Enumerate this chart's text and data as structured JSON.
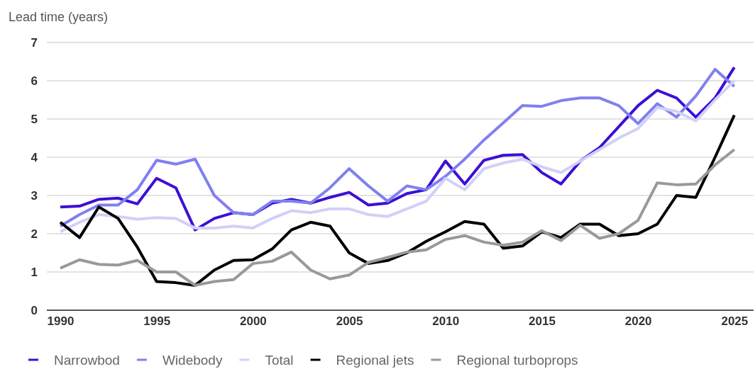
{
  "chart_data": {
    "type": "line",
    "ylabel": "Lead time (years)",
    "x": [
      1990,
      1991,
      1992,
      1993,
      1994,
      1995,
      1996,
      1997,
      1998,
      1999,
      2000,
      2001,
      2002,
      2003,
      2004,
      2005,
      2006,
      2007,
      2008,
      2009,
      2010,
      2011,
      2012,
      2013,
      2014,
      2015,
      2016,
      2017,
      2018,
      2019,
      2020,
      2021,
      2022,
      2023,
      2024,
      2025
    ],
    "xlim": [
      1989.3,
      2026
    ],
    "xticks": [
      1990,
      1995,
      2000,
      2005,
      2010,
      2015,
      2020,
      2025
    ],
    "ylim": [
      0,
      7
    ],
    "yticks": [
      0,
      1,
      2,
      3,
      4,
      5,
      6,
      7
    ],
    "grid": "y",
    "legend": "bottom",
    "marker": "none",
    "line_style": "solid",
    "series": [
      {
        "name": "Narrowbod",
        "color": "#3d0fd6",
        "values": [
          2.7,
          2.72,
          2.9,
          2.93,
          2.78,
          3.45,
          3.2,
          2.1,
          2.4,
          2.55,
          2.5,
          2.8,
          2.9,
          2.8,
          2.95,
          3.08,
          2.75,
          2.8,
          3.05,
          3.15,
          3.9,
          3.3,
          3.92,
          4.05,
          4.07,
          3.6,
          3.3,
          3.9,
          4.25,
          4.8,
          5.35,
          5.75,
          5.55,
          5.05,
          5.55,
          6.35
        ]
      },
      {
        "name": "Widebody",
        "color": "#8080f0",
        "values": [
          2.2,
          2.5,
          2.75,
          2.75,
          3.15,
          3.92,
          3.82,
          3.95,
          3.0,
          2.55,
          2.5,
          2.85,
          2.85,
          2.8,
          3.2,
          3.7,
          3.25,
          2.85,
          3.25,
          3.15,
          3.5,
          3.95,
          4.45,
          4.9,
          5.35,
          5.33,
          5.48,
          5.55,
          5.55,
          5.35,
          4.88,
          5.4,
          5.05,
          5.6,
          6.3,
          5.85
        ]
      },
      {
        "name": "Total",
        "color": "#d0d0f8",
        "values": [
          2.05,
          2.3,
          2.5,
          2.45,
          2.38,
          2.42,
          2.4,
          2.15,
          2.15,
          2.2,
          2.15,
          2.4,
          2.6,
          2.55,
          2.65,
          2.65,
          2.5,
          2.45,
          2.65,
          2.85,
          3.45,
          3.15,
          3.7,
          3.85,
          3.95,
          3.75,
          3.6,
          3.9,
          4.2,
          4.5,
          4.75,
          5.3,
          5.2,
          4.95,
          5.5,
          6.0
        ]
      },
      {
        "name": "Regional jets",
        "color": "#000000",
        "values": [
          2.3,
          1.9,
          2.7,
          2.4,
          1.65,
          0.75,
          0.72,
          0.65,
          1.05,
          1.3,
          1.32,
          1.6,
          2.1,
          2.3,
          2.2,
          1.5,
          1.22,
          1.3,
          1.5,
          1.8,
          2.05,
          2.32,
          2.25,
          1.62,
          1.68,
          2.05,
          1.9,
          2.25,
          2.25,
          1.95,
          2.0,
          2.25,
          3.0,
          2.95,
          4.0,
          5.1
        ]
      },
      {
        "name": "Regional turboprops",
        "color": "#999999",
        "values": [
          1.1,
          1.32,
          1.2,
          1.18,
          1.3,
          1.0,
          1.0,
          0.65,
          0.75,
          0.8,
          1.22,
          1.28,
          1.52,
          1.05,
          0.82,
          0.92,
          1.25,
          1.38,
          1.52,
          1.58,
          1.85,
          1.95,
          1.78,
          1.7,
          1.78,
          2.08,
          1.82,
          2.22,
          1.88,
          2.0,
          2.35,
          3.33,
          3.28,
          3.3,
          3.8,
          4.2
        ]
      }
    ]
  }
}
